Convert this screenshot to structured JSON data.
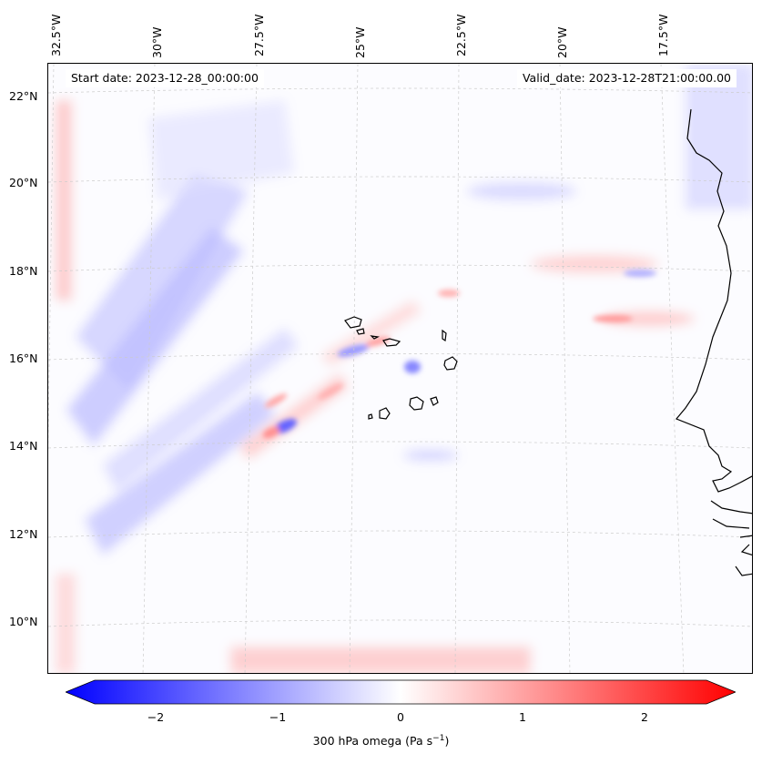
{
  "map": {
    "start_date": "Start date: 2023-12-28_00:00:00",
    "valid_date": "Valid_date: 2023-12-28T21:00:00.00",
    "lon_labels": [
      "32.5°W",
      "30°W",
      "27.5°W",
      "25°W",
      "22.5°W",
      "20°W",
      "17.5°W"
    ],
    "lat_labels": [
      "22°N",
      "20°N",
      "18°N",
      "16°N",
      "14°N",
      "12°N",
      "10°N"
    ],
    "variable": "300 hPa omega",
    "units": "Pa s",
    "units_exponent": "−1"
  },
  "colorbar": {
    "min": -2.5,
    "max": 2.5,
    "ticks": [
      {
        "value": -2,
        "label": "−2"
      },
      {
        "value": -1,
        "label": "−1"
      },
      {
        "value": 0,
        "label": "0"
      },
      {
        "value": 1,
        "label": "1"
      },
      {
        "value": 2,
        "label": "2"
      }
    ],
    "neg_color": "#0000ff",
    "pos_color": "#ff0000",
    "mid_color": "#ffffff"
  },
  "colors": {
    "coastline": "#000000",
    "gridline": "#cccccc",
    "background": "#fcfcff"
  }
}
